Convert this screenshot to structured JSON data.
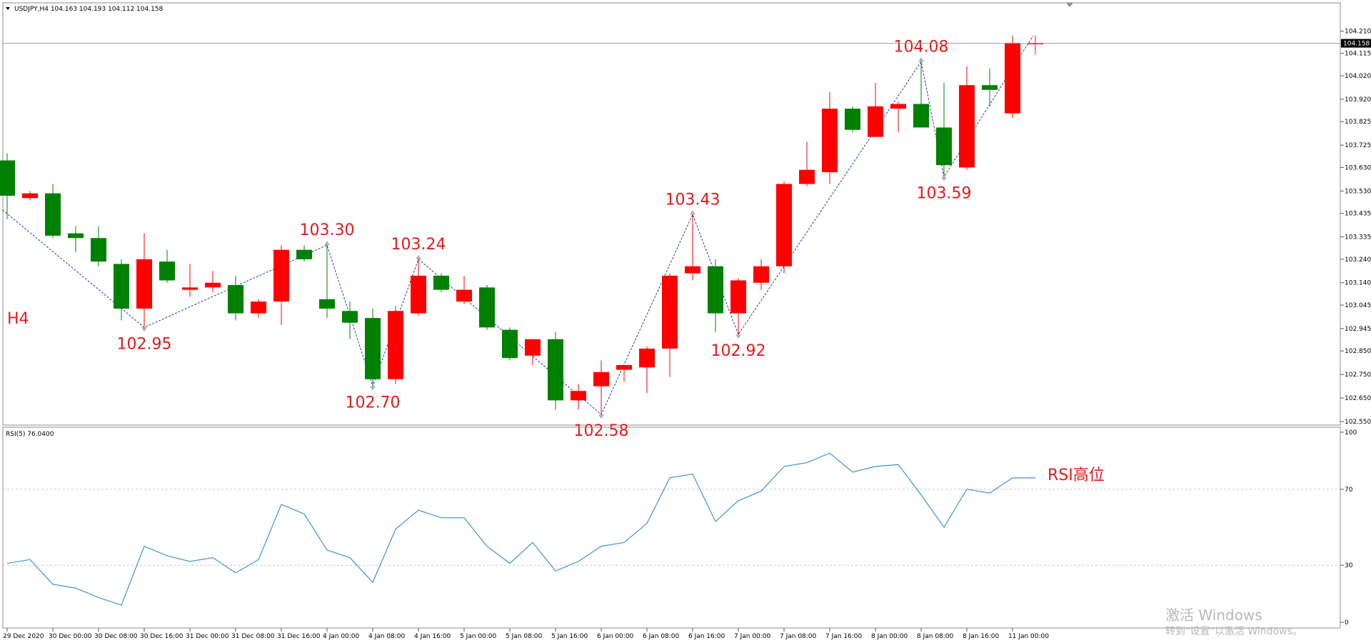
{
  "window": {
    "symbol_header": "USDJPY,H4 104.163 104.193 104.112 104.158",
    "timeframe_label": "H4",
    "last_price_label": "104.158"
  },
  "watermark": {
    "line1": "激活 Windows",
    "line2": "转到\"设置\"以激活 Windows。"
  },
  "colors": {
    "bull": "#ff0000",
    "bear": "#008000",
    "zigzag": "#1f3bb3",
    "rsi_line": "#3e93d6",
    "annotation": "#e01b1b",
    "grid_dash": "#c8c8c8"
  },
  "chart_data": [
    {
      "type": "candlestick",
      "symbol": "USDJPY",
      "timeframe": "H4",
      "y_range": [
        102.55,
        104.26
      ],
      "y_ticks": [
        "104.210",
        "104.115",
        "104.020",
        "103.920",
        "103.825",
        "103.725",
        "103.630",
        "103.530",
        "103.435",
        "103.335",
        "103.240",
        "103.140",
        "103.045",
        "102.945",
        "102.850",
        "102.750",
        "102.650",
        "102.550"
      ],
      "x_tick_labels": [
        {
          "i": 0,
          "label": "29 Dec 2020"
        },
        {
          "i": 2,
          "label": "30 Dec 00:00"
        },
        {
          "i": 4,
          "label": "30 Dec 08:00"
        },
        {
          "i": 6,
          "label": "30 Dec 16:00"
        },
        {
          "i": 8,
          "label": "31 Dec 00:00"
        },
        {
          "i": 10,
          "label": "31 Dec 08:00"
        },
        {
          "i": 12,
          "label": "31 Dec 16:00"
        },
        {
          "i": 14,
          "label": "4 Jan 00:00"
        },
        {
          "i": 16,
          "label": "4 Jan 08:00"
        },
        {
          "i": 18,
          "label": "4 Jan 16:00"
        },
        {
          "i": 20,
          "label": "5 Jan 00:00"
        },
        {
          "i": 22,
          "label": "5 Jan 08:00"
        },
        {
          "i": 24,
          "label": "5 Jan 16:00"
        },
        {
          "i": 26,
          "label": "6 Jan 00:00"
        },
        {
          "i": 28,
          "label": "6 Jan 08:00"
        },
        {
          "i": 30,
          "label": "6 Jan 16:00"
        },
        {
          "i": 32,
          "label": "7 Jan 00:00"
        },
        {
          "i": 34,
          "label": "7 Jan 08:00"
        },
        {
          "i": 36,
          "label": "7 Jan 16:00"
        },
        {
          "i": 38,
          "label": "8 Jan 00:00"
        },
        {
          "i": 40,
          "label": "8 Jan 08:00"
        },
        {
          "i": 42,
          "label": "8 Jan 16:00"
        },
        {
          "i": 44,
          "label": "11 Jan 00:00"
        }
      ],
      "candles": [
        {
          "o": 103.66,
          "h": 103.69,
          "l": 103.41,
          "c": 103.51
        },
        {
          "o": 103.5,
          "h": 103.53,
          "l": 103.49,
          "c": 103.52
        },
        {
          "o": 103.52,
          "h": 103.56,
          "l": 103.33,
          "c": 103.34
        },
        {
          "o": 103.35,
          "h": 103.38,
          "l": 103.27,
          "c": 103.33
        },
        {
          "o": 103.33,
          "h": 103.38,
          "l": 103.21,
          "c": 103.23
        },
        {
          "o": 103.22,
          "h": 103.24,
          "l": 102.98,
          "c": 103.03
        },
        {
          "o": 103.03,
          "h": 103.35,
          "l": 102.95,
          "c": 103.24
        },
        {
          "o": 103.23,
          "h": 103.28,
          "l": 103.14,
          "c": 103.15
        },
        {
          "o": 103.11,
          "h": 103.22,
          "l": 103.08,
          "c": 103.12
        },
        {
          "o": 103.12,
          "h": 103.19,
          "l": 103.1,
          "c": 103.14
        },
        {
          "o": 103.13,
          "h": 103.17,
          "l": 102.98,
          "c": 103.01
        },
        {
          "o": 103.01,
          "h": 103.07,
          "l": 102.99,
          "c": 103.06
        },
        {
          "o": 103.06,
          "h": 103.3,
          "l": 102.96,
          "c": 103.28
        },
        {
          "o": 103.28,
          "h": 103.3,
          "l": 103.23,
          "c": 103.24
        },
        {
          "o": 103.07,
          "h": 103.3,
          "l": 102.99,
          "c": 103.03
        },
        {
          "o": 103.02,
          "h": 103.06,
          "l": 102.9,
          "c": 102.97
        },
        {
          "o": 102.99,
          "h": 103.03,
          "l": 102.7,
          "c": 102.73
        },
        {
          "o": 102.73,
          "h": 103.04,
          "l": 102.71,
          "c": 103.02
        },
        {
          "o": 103.01,
          "h": 103.24,
          "l": 103.0,
          "c": 103.17
        },
        {
          "o": 103.17,
          "h": 103.18,
          "l": 103.1,
          "c": 103.11
        },
        {
          "o": 103.06,
          "h": 103.17,
          "l": 103.05,
          "c": 103.11
        },
        {
          "o": 103.12,
          "h": 103.13,
          "l": 102.94,
          "c": 102.95
        },
        {
          "o": 102.94,
          "h": 102.95,
          "l": 102.81,
          "c": 102.82
        },
        {
          "o": 102.83,
          "h": 102.9,
          "l": 102.79,
          "c": 102.9
        },
        {
          "o": 102.9,
          "h": 102.93,
          "l": 102.6,
          "c": 102.64
        },
        {
          "o": 102.64,
          "h": 102.71,
          "l": 102.6,
          "c": 102.68
        },
        {
          "o": 102.7,
          "h": 102.81,
          "l": 102.58,
          "c": 102.76
        },
        {
          "o": 102.77,
          "h": 102.79,
          "l": 102.72,
          "c": 102.79
        },
        {
          "o": 102.78,
          "h": 102.87,
          "l": 102.67,
          "c": 102.86
        },
        {
          "o": 102.86,
          "h": 103.18,
          "l": 102.74,
          "c": 103.17
        },
        {
          "o": 103.18,
          "h": 103.43,
          "l": 103.15,
          "c": 103.21
        },
        {
          "o": 103.21,
          "h": 103.24,
          "l": 102.93,
          "c": 103.01
        },
        {
          "o": 103.01,
          "h": 103.16,
          "l": 102.92,
          "c": 103.15
        },
        {
          "o": 103.14,
          "h": 103.24,
          "l": 103.11,
          "c": 103.21
        },
        {
          "o": 103.21,
          "h": 103.57,
          "l": 103.18,
          "c": 103.56
        },
        {
          "o": 103.56,
          "h": 103.74,
          "l": 103.55,
          "c": 103.62
        },
        {
          "o": 103.61,
          "h": 103.95,
          "l": 103.56,
          "c": 103.88
        },
        {
          "o": 103.88,
          "h": 103.89,
          "l": 103.78,
          "c": 103.79
        },
        {
          "o": 103.76,
          "h": 103.99,
          "l": 103.76,
          "c": 103.89
        },
        {
          "o": 103.88,
          "h": 103.91,
          "l": 103.78,
          "c": 103.9
        },
        {
          "o": 103.9,
          "h": 104.08,
          "l": 103.8,
          "c": 103.8
        },
        {
          "o": 103.8,
          "h": 103.99,
          "l": 103.59,
          "c": 103.64
        },
        {
          "o": 103.63,
          "h": 104.06,
          "l": 103.62,
          "c": 103.98
        },
        {
          "o": 103.98,
          "h": 104.05,
          "l": 103.89,
          "c": 103.96
        },
        {
          "o": 103.86,
          "h": 104.19,
          "l": 103.84,
          "c": 104.16
        },
        {
          "o": 104.16,
          "h": 104.19,
          "l": 104.11,
          "c": 104.16
        }
      ],
      "zigzag": [
        {
          "i": -0.2,
          "price": 103.45
        },
        {
          "i": 6,
          "price": 102.95
        },
        {
          "i": 14,
          "price": 103.3
        },
        {
          "i": 16,
          "price": 102.7
        },
        {
          "i": 18,
          "price": 103.24
        },
        {
          "i": 26,
          "price": 102.58
        },
        {
          "i": 30,
          "price": 103.43
        },
        {
          "i": 32,
          "price": 102.92
        },
        {
          "i": 40,
          "price": 104.08
        },
        {
          "i": 41,
          "price": 103.59
        },
        {
          "i": 44.9,
          "price": 104.19
        }
      ],
      "annotations": [
        {
          "i": 6,
          "price": 102.95,
          "text": "102.95",
          "pos": "below"
        },
        {
          "i": 14,
          "price": 103.3,
          "text": "103.30",
          "pos": "above"
        },
        {
          "i": 16,
          "price": 102.7,
          "text": "102.70",
          "pos": "below"
        },
        {
          "i": 18,
          "price": 103.24,
          "text": "103.24",
          "pos": "above"
        },
        {
          "i": 26,
          "price": 102.58,
          "text": "102.58",
          "pos": "below"
        },
        {
          "i": 30,
          "price": 103.43,
          "text": "103.43",
          "pos": "above"
        },
        {
          "i": 32,
          "price": 102.92,
          "text": "102.92",
          "pos": "below"
        },
        {
          "i": 40,
          "price": 104.08,
          "text": "104.08",
          "pos": "above"
        },
        {
          "i": 41,
          "price": 103.59,
          "text": "103.59",
          "pos": "below"
        }
      ],
      "last_price": 104.158
    },
    {
      "type": "line",
      "indicator": "RSI(5)",
      "header": "RSI(5) 76.0400",
      "y_range": [
        0,
        100
      ],
      "y_ticks": [
        "100",
        "70",
        "30",
        "0"
      ],
      "levels": [
        70,
        30
      ],
      "annotation": "RSI高位",
      "values": [
        31,
        33,
        20,
        18,
        13,
        9,
        40,
        35,
        32,
        34,
        26,
        33,
        62,
        57,
        38,
        34,
        21,
        49,
        59,
        55,
        55,
        40,
        31,
        42,
        27,
        32,
        40,
        42,
        52,
        76,
        78,
        53,
        64,
        69,
        82,
        84,
        89,
        79,
        82,
        83,
        67,
        50,
        70,
        68,
        76,
        76
      ]
    }
  ]
}
